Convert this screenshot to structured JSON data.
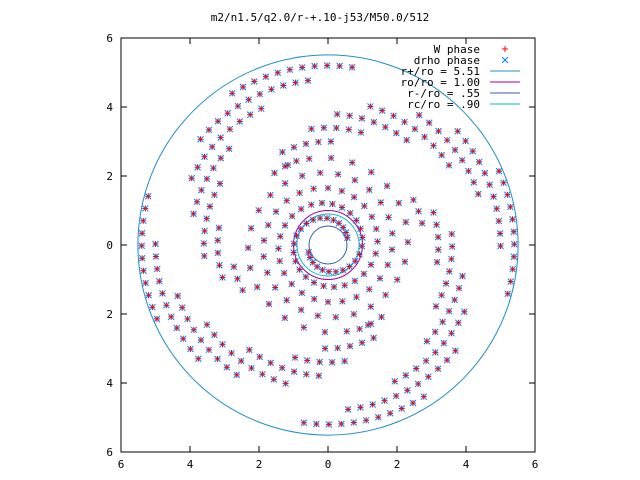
{
  "chart_data": {
    "type": "scatter",
    "title": "m2/n1.5/q2.0/r-+.10-j53/M50.0/512",
    "xlabel": "",
    "ylabel": "",
    "xlim": [
      -6,
      6
    ],
    "ylim": [
      -6,
      6
    ],
    "x_tick_values": [
      -6,
      -4,
      -2,
      0,
      2,
      4,
      6
    ],
    "x_tick_labels": [
      "6",
      "4",
      "2",
      "0",
      "2",
      "4",
      "6"
    ],
    "y_tick_values": [
      6,
      4,
      2,
      0,
      -2,
      -4,
      -6
    ],
    "y_tick_labels": [
      "6",
      "4",
      "2",
      "0",
      "2",
      "4",
      "6"
    ],
    "grid": false,
    "legend_position": "top-right",
    "series": [
      {
        "name": "W phase",
        "kind": "points",
        "marker": "plus",
        "color": "#ff0000"
      },
      {
        "name": "drho phase",
        "kind": "points",
        "marker": "cross",
        "color": "#0080ff"
      },
      {
        "name": "r+/ro = 5.51",
        "kind": "circle",
        "radius": 5.51,
        "color": "#1e90c8"
      },
      {
        "name": "ro/ro = 1.00",
        "kind": "circle",
        "radius": 1.0,
        "color": "#a000a0"
      },
      {
        "name": "r-/ro = .55",
        "kind": "circle",
        "radius": 0.55,
        "color": "#3060b0"
      },
      {
        "name": "rc/ro = .90",
        "kind": "circle",
        "radius": 0.9,
        "color": "#00c0c0"
      }
    ],
    "spiral": {
      "arms": 2,
      "pattern_angle_offset_deg": 0,
      "r_inner": 0.55,
      "r_outer": 5.51,
      "pitch_per_turn": 0.88,
      "dense_lattice_limit": 2.6,
      "radial_lattice_dr": 0.2,
      "angular_lattice_step_deg": 8
    }
  }
}
